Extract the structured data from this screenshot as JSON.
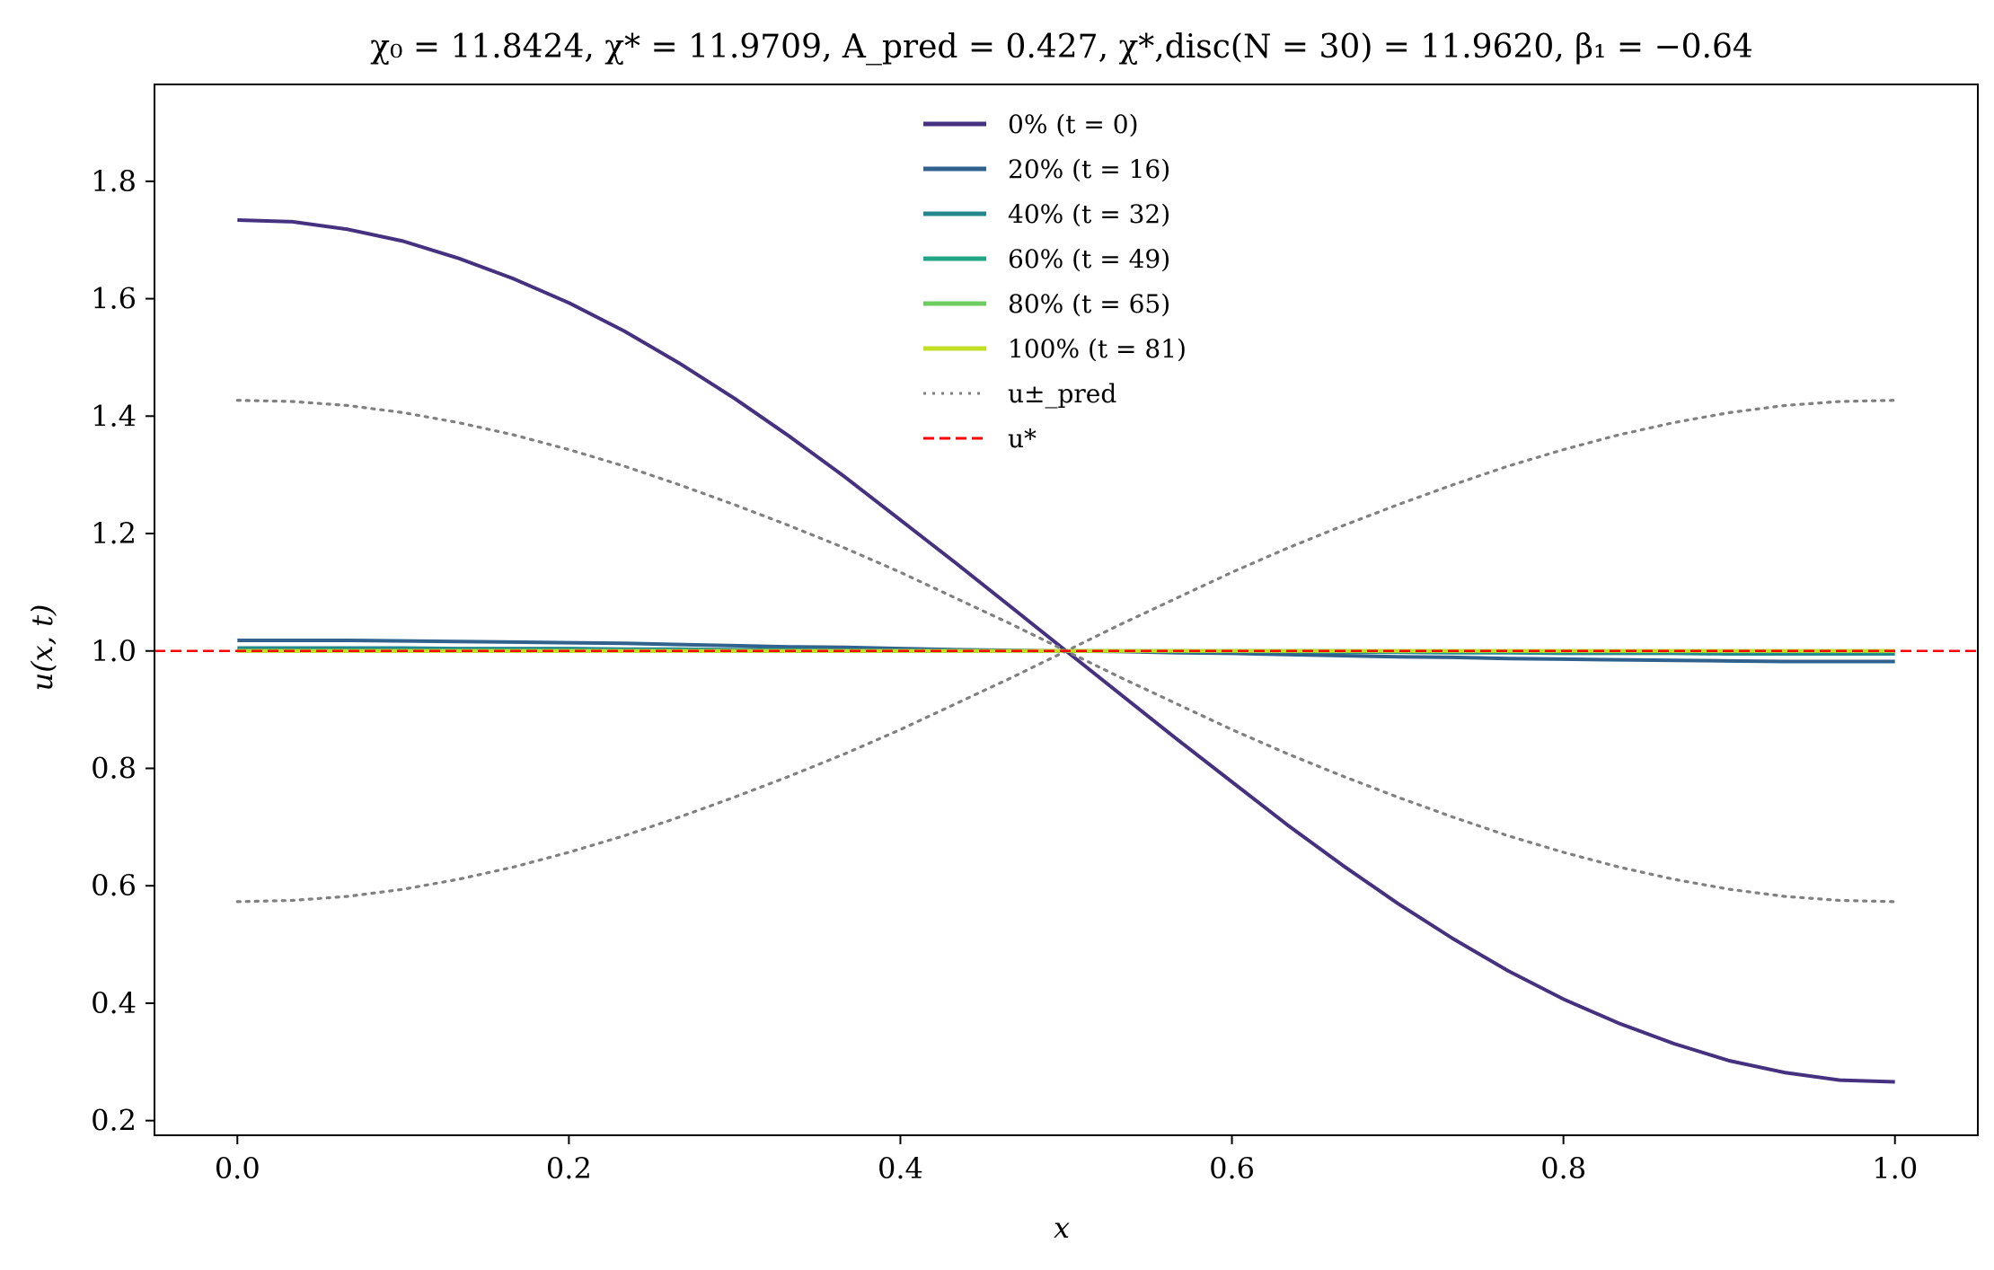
{
  "chart_data": {
    "type": "line",
    "title": "χ₀ = 11.8424,  χ* = 11.9709,  A_pred = 0.427,  χ*,disc(N = 30) = 11.9620,  β₁ = −0.64",
    "xlabel": "x",
    "ylabel": "u(x, t)",
    "xlim": [
      -0.05,
      1.05
    ],
    "ylim": [
      0.175,
      1.965
    ],
    "xticks": [
      0.0,
      0.2,
      0.4,
      0.6,
      0.8,
      1.0
    ],
    "xtick_labels": [
      "0.0",
      "0.2",
      "0.4",
      "0.6",
      "0.8",
      "1.0"
    ],
    "yticks": [
      0.2,
      0.4,
      0.6,
      0.8,
      1.0,
      1.2,
      1.4,
      1.6,
      1.8
    ],
    "ytick_labels": [
      "0.2",
      "0.4",
      "0.6",
      "0.8",
      "1.0",
      "1.2",
      "1.4",
      "1.6",
      "1.8"
    ],
    "grid": false,
    "legend_position": "top-center",
    "x": [
      0.0,
      0.0333,
      0.0667,
      0.1,
      0.1333,
      0.1667,
      0.2,
      0.2333,
      0.2667,
      0.3,
      0.3333,
      0.3667,
      0.4,
      0.4333,
      0.4667,
      0.5,
      0.5333,
      0.5667,
      0.6,
      0.6333,
      0.6667,
      0.7,
      0.7333,
      0.7667,
      0.8,
      0.8333,
      0.8667,
      0.9,
      0.9333,
      0.9667,
      1.0
    ],
    "series": [
      {
        "name": "0% (t = 0)",
        "color": "#45317f",
        "style": "solid",
        "values": [
          1.734,
          1.731,
          1.718,
          1.698,
          1.669,
          1.634,
          1.593,
          1.545,
          1.49,
          1.43,
          1.365,
          1.296,
          1.223,
          1.15,
          1.075,
          1.0,
          0.925,
          0.85,
          0.777,
          0.704,
          0.635,
          0.57,
          0.51,
          0.455,
          0.407,
          0.366,
          0.331,
          0.302,
          0.282,
          0.269,
          0.266
        ]
      },
      {
        "name": "20% (t = 16)",
        "color": "#31628e",
        "style": "solid",
        "values": [
          1.018,
          1.018,
          1.018,
          1.017,
          1.016,
          1.015,
          1.014,
          1.013,
          1.011,
          1.009,
          1.007,
          1.006,
          1.004,
          1.002,
          1.001,
          1.0,
          0.999,
          0.997,
          0.996,
          0.994,
          0.992,
          0.99,
          0.989,
          0.987,
          0.986,
          0.985,
          0.984,
          0.983,
          0.982,
          0.982,
          0.982
        ]
      },
      {
        "name": "40% (t = 32)",
        "color": "#23878d",
        "style": "solid",
        "values": [
          1.005,
          1.005,
          1.005,
          1.005,
          1.004,
          1.004,
          1.004,
          1.003,
          1.003,
          1.002,
          1.002,
          1.001,
          1.001,
          1.001,
          1.0,
          1.0,
          1.0,
          0.999,
          0.999,
          0.999,
          0.998,
          0.998,
          0.997,
          0.997,
          0.996,
          0.996,
          0.996,
          0.995,
          0.995,
          0.995,
          0.995
        ]
      },
      {
        "name": "60% (t = 49)",
        "color": "#20a585",
        "style": "solid",
        "values": [
          1.001,
          1.001,
          1.001,
          1.001,
          1.001,
          1.001,
          1.001,
          1.001,
          1.001,
          1.0,
          1.0,
          1.0,
          1.0,
          1.0,
          1.0,
          1.0,
          1.0,
          1.0,
          1.0,
          1.0,
          1.0,
          0.999,
          0.999,
          0.999,
          0.999,
          0.999,
          0.999,
          0.999,
          0.999,
          0.999,
          0.999
        ]
      },
      {
        "name": "80% (t = 65)",
        "color": "#6ccc5e",
        "style": "solid",
        "values": [
          1.0,
          1.0,
          1.0,
          1.0,
          1.0,
          1.0,
          1.0,
          1.0,
          1.0,
          1.0,
          1.0,
          1.0,
          1.0,
          1.0,
          1.0,
          1.0,
          1.0,
          1.0,
          1.0,
          1.0,
          1.0,
          1.0,
          1.0,
          1.0,
          1.0,
          1.0,
          1.0,
          1.0,
          1.0,
          1.0,
          1.0
        ]
      },
      {
        "name": "100% (t = 81)",
        "color": "#c2df23",
        "style": "solid",
        "values": [
          1.0,
          1.0,
          1.0,
          1.0,
          1.0,
          1.0,
          1.0,
          1.0,
          1.0,
          1.0,
          1.0,
          1.0,
          1.0,
          1.0,
          1.0,
          1.0,
          1.0,
          1.0,
          1.0,
          1.0,
          1.0,
          1.0,
          1.0,
          1.0,
          1.0,
          1.0,
          1.0,
          1.0,
          1.0,
          1.0,
          1.0
        ]
      },
      {
        "name": "u±_pred",
        "color": "#808080",
        "style": "dotted",
        "values": [
          1.427,
          1.425,
          1.418,
          1.406,
          1.389,
          1.368,
          1.343,
          1.315,
          1.283,
          1.249,
          1.213,
          1.175,
          1.134,
          1.09,
          1.046,
          1.0,
          0.954,
          0.91,
          0.866,
          0.825,
          0.787,
          0.751,
          0.717,
          0.685,
          0.657,
          0.632,
          0.611,
          0.594,
          0.582,
          0.575,
          0.573
        ]
      },
      {
        "name": "",
        "color": "#808080",
        "style": "dotted",
        "legend": false,
        "values": [
          0.573,
          0.575,
          0.582,
          0.594,
          0.611,
          0.632,
          0.657,
          0.685,
          0.717,
          0.751,
          0.787,
          0.825,
          0.866,
          0.91,
          0.954,
          1.0,
          1.046,
          1.09,
          1.134,
          1.175,
          1.213,
          1.249,
          1.283,
          1.315,
          1.343,
          1.368,
          1.389,
          1.406,
          1.418,
          1.425,
          1.427
        ]
      }
    ],
    "reference_lines": [
      {
        "name": "u*",
        "y": 1.0,
        "color": "#ff0000",
        "style": "dashed"
      }
    ]
  }
}
